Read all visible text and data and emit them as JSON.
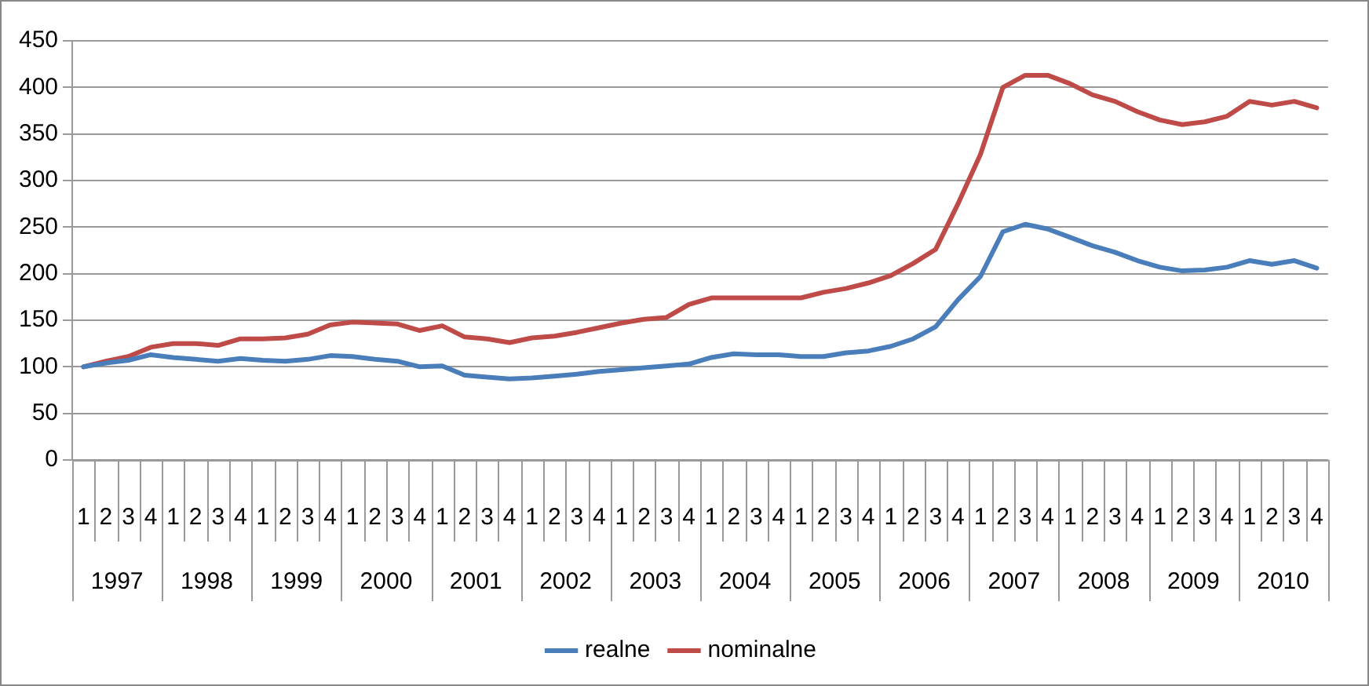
{
  "chart_data": {
    "type": "line",
    "categories": [
      "1",
      "2",
      "3",
      "4",
      "1",
      "2",
      "3",
      "4",
      "1",
      "2",
      "3",
      "4",
      "1",
      "2",
      "3",
      "4",
      "1",
      "2",
      "3",
      "4",
      "1",
      "2",
      "3",
      "4",
      "1",
      "2",
      "3",
      "4",
      "1",
      "2",
      "3",
      "4",
      "1",
      "2",
      "3",
      "4",
      "1",
      "2",
      "3",
      "4",
      "1",
      "2",
      "3",
      "4",
      "1",
      "2",
      "3",
      "4",
      "1",
      "2",
      "3",
      "4",
      "1",
      "2",
      "3",
      "4"
    ],
    "annotations": [
      "1997",
      "1998",
      "1999",
      "2000",
      "2001",
      "2002",
      "2003",
      "2004",
      "2005",
      "2006",
      "2007",
      "2008",
      "2009",
      "2010"
    ],
    "series": [
      {
        "name": "realne",
        "color": "#4a7ebb",
        "values": [
          100,
          104,
          107,
          113,
          110,
          108,
          106,
          109,
          107,
          106,
          108,
          112,
          111,
          108,
          106,
          100,
          101,
          91,
          89,
          87,
          88,
          90,
          92,
          95,
          97,
          99,
          101,
          103,
          110,
          114,
          113,
          113,
          111,
          111,
          115,
          117,
          122,
          130,
          143,
          172,
          197,
          245,
          253,
          248,
          239,
          230,
          223,
          214,
          207,
          203,
          204,
          207,
          214,
          210,
          214,
          206
        ]
      },
      {
        "name": "nominalne",
        "color": "#be4b48",
        "values": [
          100,
          106,
          111,
          121,
          125,
          125,
          123,
          130,
          130,
          131,
          135,
          145,
          148,
          147,
          146,
          139,
          144,
          132,
          130,
          126,
          131,
          133,
          137,
          142,
          147,
          151,
          153,
          167,
          174,
          174,
          174,
          174,
          174,
          180,
          184,
          190,
          198,
          211,
          226,
          275,
          328,
          400,
          413,
          413,
          404,
          392,
          385,
          374,
          365,
          360,
          363,
          369,
          385,
          381,
          385,
          378
        ]
      }
    ],
    "ylim": [
      0,
      450
    ],
    "yticks": [
      0,
      50,
      100,
      150,
      200,
      250,
      300,
      350,
      400,
      450
    ],
    "grid": "y",
    "legend": "bottom",
    "marker": "none",
    "line_style": "solid"
  }
}
